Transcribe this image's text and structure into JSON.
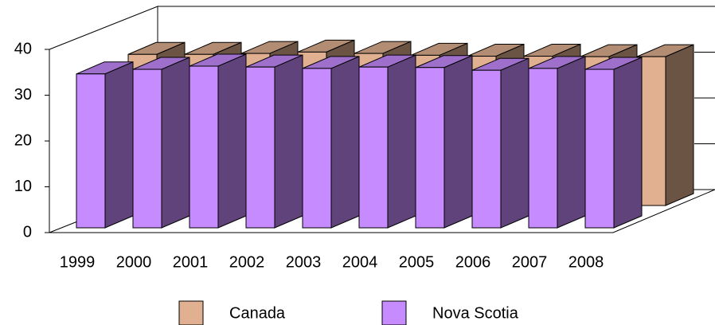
{
  "chart_data": {
    "type": "bar3d",
    "categories": [
      "1999",
      "2000",
      "2001",
      "2002",
      "2003",
      "2004",
      "2005",
      "2006",
      "2007",
      "2008"
    ],
    "series": [
      {
        "name": "Canada",
        "color": "#e0b090",
        "values": [
          33,
          33,
          33.2,
          33.5,
          33.2,
          32.8,
          32.6,
          32.6,
          32.5,
          32.5
        ]
      },
      {
        "name": "Nova Scotia",
        "color": "#c68cff",
        "values": [
          33.6,
          34.6,
          35.3,
          35.1,
          34.8,
          35.1,
          35,
          34.4,
          34.8,
          34.6
        ]
      }
    ],
    "ylim": [
      0,
      40
    ],
    "yticks": [
      0,
      10,
      20,
      30,
      40
    ],
    "legend": "bottom"
  }
}
